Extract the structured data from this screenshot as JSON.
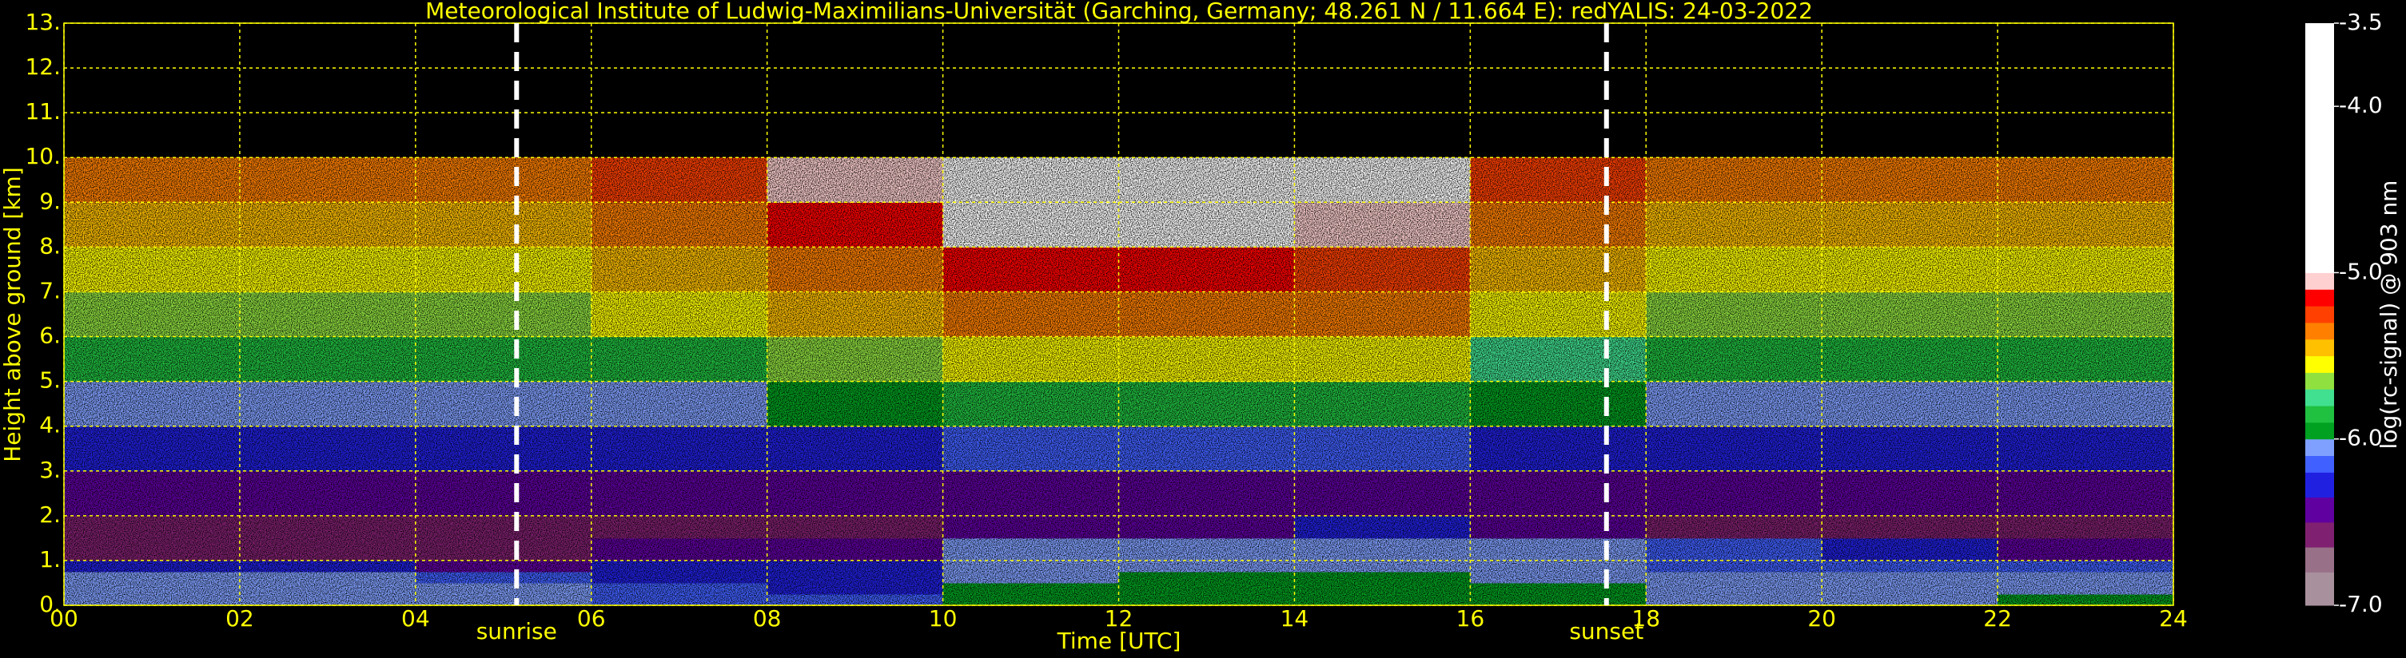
{
  "chart_data": {
    "type": "heatmap",
    "title": "Meteorological Institute of Ludwig-Maximilians-Universität (Garching, Germany; 48.261 N / 11.664 E):    redYALIS: 24-03-2022",
    "x_label": "Time [UTC]",
    "y_label": "Height above ground [km]",
    "text_color": "#ffff00",
    "grid": true,
    "grid_color": "#ffff00",
    "xlim": [
      0,
      24
    ],
    "ylim": [
      0,
      13
    ],
    "xticks": [
      {
        "value": 0,
        "label": "00"
      },
      {
        "value": 2,
        "label": "02"
      },
      {
        "value": 4,
        "label": "04"
      },
      {
        "value": 6,
        "label": "06"
      },
      {
        "value": 8,
        "label": "08"
      },
      {
        "value": 10,
        "label": "10"
      },
      {
        "value": 12,
        "label": "12"
      },
      {
        "value": 14,
        "label": "14"
      },
      {
        "value": 16,
        "label": "16"
      },
      {
        "value": 18,
        "label": "18"
      },
      {
        "value": 20,
        "label": "20"
      },
      {
        "value": 22,
        "label": "22"
      },
      {
        "value": 24,
        "label": "24"
      }
    ],
    "yticks": [
      {
        "value": 0,
        "label": "0."
      },
      {
        "value": 1,
        "label": "1."
      },
      {
        "value": 2,
        "label": "2."
      },
      {
        "value": 3,
        "label": "3."
      },
      {
        "value": 4,
        "label": "4."
      },
      {
        "value": 5,
        "label": "5."
      },
      {
        "value": 6,
        "label": "6."
      },
      {
        "value": 7,
        "label": "7."
      },
      {
        "value": 8,
        "label": "8."
      },
      {
        "value": 9,
        "label": "9."
      },
      {
        "value": 10,
        "label": "10."
      },
      {
        "value": 11,
        "label": "11."
      },
      {
        "value": 12,
        "label": "12."
      },
      {
        "value": 13,
        "label": "13."
      }
    ],
    "x_bins": [
      0,
      2,
      4,
      6,
      8,
      10,
      12,
      14,
      16,
      18,
      20,
      22,
      24
    ],
    "y_bins": [
      0,
      0.25,
      0.5,
      0.75,
      1,
      1.5,
      2,
      3,
      4,
      5,
      6,
      7,
      8,
      9,
      10
    ],
    "z": [
      [
        -6.1,
        -6.1,
        -6.1,
        -6.2,
        -6.2,
        -6.0,
        -6.0,
        -6.0,
        -6.0,
        -6.1,
        -6.1,
        -6.0
      ],
      [
        -6.1,
        -6.1,
        -6.1,
        -6.2,
        -6.25,
        -6.0,
        -6.0,
        -6.0,
        -6.0,
        -6.1,
        -6.1,
        -6.1
      ],
      [
        -6.1,
        -6.1,
        -6.15,
        -6.3,
        -6.3,
        -6.05,
        -6.0,
        -6.0,
        -6.05,
        -6.1,
        -6.1,
        -6.1
      ],
      [
        -6.3,
        -6.3,
        -6.4,
        -6.35,
        -6.35,
        -6.05,
        -6.05,
        -6.05,
        -6.1,
        -6.15,
        -6.15,
        -6.15
      ],
      [
        -6.6,
        -6.6,
        -6.6,
        -6.5,
        -6.5,
        -6.1,
        -6.05,
        -6.05,
        -6.1,
        -6.2,
        -6.3,
        -6.4
      ],
      [
        -6.6,
        -6.6,
        -6.6,
        -6.6,
        -6.6,
        -6.5,
        -6.4,
        -6.35,
        -6.4,
        -6.6,
        -6.6,
        -6.6
      ],
      [
        -6.5,
        -6.5,
        -6.5,
        -6.5,
        -6.45,
        -6.4,
        -6.4,
        -6.4,
        -6.45,
        -6.5,
        -6.5,
        -6.5
      ],
      [
        -6.35,
        -6.35,
        -6.35,
        -6.3,
        -6.25,
        -6.2,
        -6.2,
        -6.2,
        -6.3,
        -6.35,
        -6.35,
        -6.35
      ],
      [
        -6.1,
        -6.1,
        -6.1,
        -6.05,
        -6.0,
        -5.9,
        -5.85,
        -5.9,
        -6.0,
        -6.1,
        -6.1,
        -6.1
      ],
      [
        -5.9,
        -5.9,
        -5.9,
        -5.85,
        -5.7,
        -5.6,
        -5.55,
        -5.6,
        -5.8,
        -5.9,
        -5.9,
        -5.9
      ],
      [
        -5.7,
        -5.7,
        -5.7,
        -5.6,
        -5.5,
        -5.4,
        -5.35,
        -5.4,
        -5.6,
        -5.7,
        -5.7,
        -5.7
      ],
      [
        -5.55,
        -5.55,
        -5.55,
        -5.45,
        -5.35,
        -5.2,
        -5.2,
        -5.25,
        -5.45,
        -5.55,
        -5.55,
        -5.55
      ],
      [
        -5.45,
        -5.45,
        -5.45,
        -5.35,
        -5.2,
        -5.0,
        -5.0,
        -5.1,
        -5.35,
        -5.45,
        -5.45,
        -5.45
      ],
      [
        -5.4,
        -5.4,
        -5.4,
        -5.3,
        -5.1,
        -4.8,
        -4.8,
        -5.0,
        -5.3,
        -5.4,
        -5.4,
        -5.4
      ]
    ],
    "annotations": [
      {
        "x": 5.15,
        "label": "sunrise",
        "color": "#ffffff"
      },
      {
        "x": 17.55,
        "label": "sunset",
        "color": "#ffffff"
      }
    ],
    "colorbar": {
      "label": "log(rc-signal) @ 903 nm",
      "text_color": "#ffffff",
      "lim": [
        -7.0,
        -3.5
      ],
      "ticks": [
        {
          "value": -7,
          "label": "-7.0"
        },
        {
          "value": -6,
          "label": "-6.0"
        },
        {
          "value": -5,
          "label": "-5.0"
        },
        {
          "value": -4,
          "label": "-4.0"
        },
        -3.5
      ],
      "colorscale": [
        {
          "value": -7.0,
          "color": "#a8909c"
        },
        {
          "value": -6.8,
          "color": "#987088"
        },
        {
          "value": -6.65,
          "color": "#802070"
        },
        {
          "value": -6.5,
          "color": "#6000a0"
        },
        {
          "value": -6.35,
          "color": "#2020e0"
        },
        {
          "value": -6.2,
          "color": "#4060ff"
        },
        {
          "value": -6.1,
          "color": "#80a0ff"
        },
        {
          "value": -6.0,
          "color": "#00a020"
        },
        {
          "value": -5.9,
          "color": "#20c040"
        },
        {
          "value": -5.8,
          "color": "#40e090"
        },
        {
          "value": -5.7,
          "color": "#90e040"
        },
        {
          "value": -5.6,
          "color": "#ffff00"
        },
        {
          "value": -5.5,
          "color": "#ffc000"
        },
        {
          "value": -5.4,
          "color": "#ff8000"
        },
        {
          "value": -5.3,
          "color": "#ff4000"
        },
        {
          "value": -5.2,
          "color": "#ff0000"
        },
        {
          "value": -5.1,
          "color": "#ffd0d0"
        },
        {
          "value": -5.0,
          "color": "#ffffff"
        }
      ]
    }
  }
}
